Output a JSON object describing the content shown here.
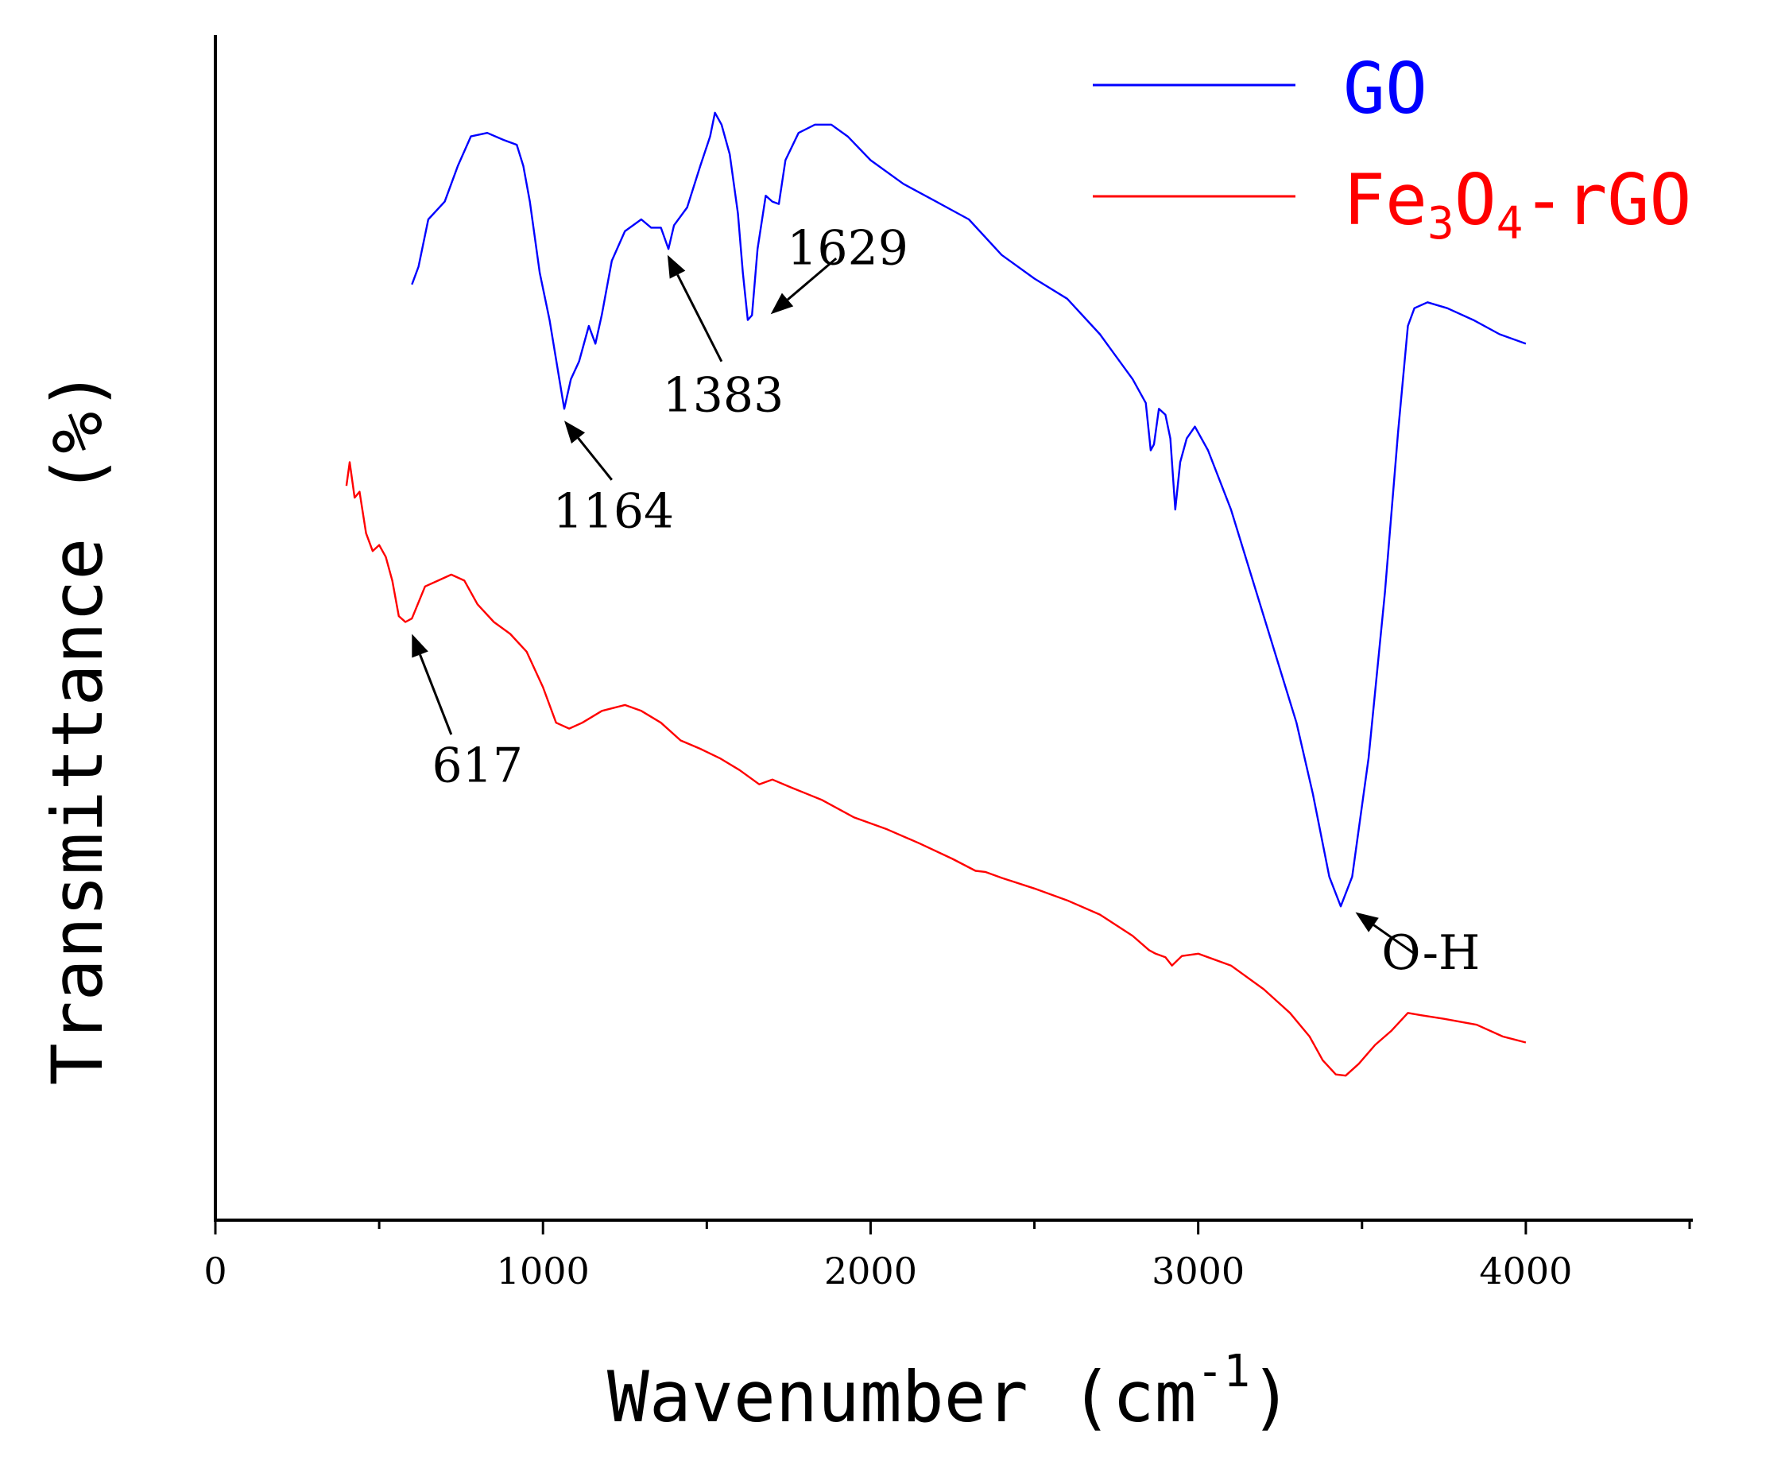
{
  "chart_data": {
    "type": "line",
    "title": "",
    "xlabel": "Wavenumber",
    "xlabel_unit": "(cm",
    "xlabel_unit_sup": "-1",
    "xlabel_unit_close": ")",
    "ylabel": "Transmittance (%)",
    "xlim": [
      0,
      4500
    ],
    "ylim": [
      0,
      100
    ],
    "x_ticks": [
      "0",
      "1000",
      "2000",
      "3000",
      "4000"
    ],
    "x_tick_values": [
      0,
      1000,
      2000,
      3000,
      4000
    ],
    "x_minor_ticks": [
      500,
      1500,
      2500,
      3500,
      4500
    ],
    "grid": false,
    "legend_position": "top-right",
    "series": [
      {
        "name": "GO",
        "color": "#0000ff",
        "points": [
          [
            600,
            79
          ],
          [
            620,
            80.5
          ],
          [
            650,
            84.5
          ],
          [
            700,
            86
          ],
          [
            740,
            89
          ],
          [
            780,
            91.5
          ],
          [
            830,
            91.8
          ],
          [
            880,
            91.2
          ],
          [
            920,
            90.8
          ],
          [
            940,
            89
          ],
          [
            960,
            86
          ],
          [
            990,
            80
          ],
          [
            1020,
            76
          ],
          [
            1050,
            71
          ],
          [
            1065,
            68.5
          ],
          [
            1085,
            71
          ],
          [
            1110,
            72.5
          ],
          [
            1140,
            75.5
          ],
          [
            1160,
            74
          ],
          [
            1180,
            76.5
          ],
          [
            1210,
            81
          ],
          [
            1250,
            83.5
          ],
          [
            1300,
            84.5
          ],
          [
            1330,
            83.8
          ],
          [
            1360,
            83.8
          ],
          [
            1383,
            82
          ],
          [
            1400,
            84
          ],
          [
            1440,
            85.5
          ],
          [
            1480,
            89
          ],
          [
            1510,
            91.5
          ],
          [
            1525,
            93.5
          ],
          [
            1545,
            92.5
          ],
          [
            1570,
            90
          ],
          [
            1595,
            85
          ],
          [
            1610,
            80
          ],
          [
            1625,
            76
          ],
          [
            1638,
            76.4
          ],
          [
            1655,
            82
          ],
          [
            1680,
            86.5
          ],
          [
            1700,
            86
          ],
          [
            1720,
            85.8
          ],
          [
            1740,
            89.5
          ],
          [
            1780,
            91.8
          ],
          [
            1830,
            92.5
          ],
          [
            1880,
            92.5
          ],
          [
            1930,
            91.5
          ],
          [
            2000,
            89.5
          ],
          [
            2100,
            87.5
          ],
          [
            2200,
            86
          ],
          [
            2300,
            84.5
          ],
          [
            2400,
            81.5
          ],
          [
            2500,
            79.5
          ],
          [
            2600,
            77.8
          ],
          [
            2700,
            74.8
          ],
          [
            2800,
            71
          ],
          [
            2840,
            69
          ],
          [
            2855,
            65
          ],
          [
            2865,
            65.5
          ],
          [
            2880,
            68.5
          ],
          [
            2900,
            68
          ],
          [
            2915,
            66
          ],
          [
            2930,
            60
          ],
          [
            2945,
            64
          ],
          [
            2965,
            66
          ],
          [
            2990,
            67
          ],
          [
            3030,
            65
          ],
          [
            3100,
            60
          ],
          [
            3200,
            51
          ],
          [
            3300,
            42
          ],
          [
            3350,
            36
          ],
          [
            3400,
            29
          ],
          [
            3435,
            26.5
          ],
          [
            3470,
            29
          ],
          [
            3520,
            39
          ],
          [
            3570,
            53
          ],
          [
            3610,
            66.5
          ],
          [
            3640,
            75.5
          ],
          [
            3660,
            77
          ],
          [
            3700,
            77.5
          ],
          [
            3760,
            77
          ],
          [
            3840,
            76
          ],
          [
            3920,
            74.8
          ],
          [
            4000,
            74
          ]
        ]
      },
      {
        "name": "Fe3O4-rGO",
        "legend_label_parts": [
          "Fe",
          "3",
          "O",
          "4",
          "-rGO"
        ],
        "color": "#ff0000",
        "points": [
          [
            400,
            62
          ],
          [
            410,
            64
          ],
          [
            425,
            61
          ],
          [
            440,
            61.5
          ],
          [
            460,
            58
          ],
          [
            480,
            56.5
          ],
          [
            500,
            57
          ],
          [
            520,
            56
          ],
          [
            540,
            54
          ],
          [
            560,
            51
          ],
          [
            580,
            50.5
          ],
          [
            600,
            50.8
          ],
          [
            640,
            53.5
          ],
          [
            680,
            54
          ],
          [
            720,
            54.5
          ],
          [
            760,
            54
          ],
          [
            800,
            52
          ],
          [
            850,
            50.5
          ],
          [
            900,
            49.5
          ],
          [
            950,
            48
          ],
          [
            1000,
            45
          ],
          [
            1040,
            42
          ],
          [
            1080,
            41.5
          ],
          [
            1120,
            42
          ],
          [
            1180,
            43
          ],
          [
            1250,
            43.5
          ],
          [
            1300,
            43
          ],
          [
            1360,
            42
          ],
          [
            1420,
            40.5
          ],
          [
            1480,
            39.8
          ],
          [
            1540,
            39
          ],
          [
            1600,
            38
          ],
          [
            1660,
            36.8
          ],
          [
            1700,
            37.2
          ],
          [
            1760,
            36.5
          ],
          [
            1850,
            35.5
          ],
          [
            1950,
            34
          ],
          [
            2050,
            33
          ],
          [
            2150,
            31.8
          ],
          [
            2250,
            30.5
          ],
          [
            2320,
            29.5
          ],
          [
            2350,
            29.4
          ],
          [
            2400,
            28.9
          ],
          [
            2500,
            28
          ],
          [
            2600,
            27
          ],
          [
            2700,
            25.8
          ],
          [
            2800,
            24
          ],
          [
            2850,
            22.8
          ],
          [
            2870,
            22.5
          ],
          [
            2900,
            22.2
          ],
          [
            2920,
            21.5
          ],
          [
            2950,
            22.3
          ],
          [
            3000,
            22.5
          ],
          [
            3100,
            21.5
          ],
          [
            3200,
            19.5
          ],
          [
            3280,
            17.5
          ],
          [
            3340,
            15.5
          ],
          [
            3380,
            13.5
          ],
          [
            3420,
            12.3
          ],
          [
            3450,
            12.2
          ],
          [
            3490,
            13.2
          ],
          [
            3540,
            14.8
          ],
          [
            3590,
            16
          ],
          [
            3640,
            17.5
          ],
          [
            3680,
            17.3
          ],
          [
            3750,
            17
          ],
          [
            3850,
            16.5
          ],
          [
            3930,
            15.5
          ],
          [
            4000,
            15
          ]
        ]
      }
    ],
    "annotations": [
      {
        "label": "1164",
        "target": [
          1065,
          67.5
        ],
        "tail": [
          1210,
          62.5
        ],
        "text_pos": [
          1215,
          58.5
        ]
      },
      {
        "label": "1383",
        "target": [
          1380,
          81.5
        ],
        "tail": [
          1545,
          72.5
        ],
        "text_pos": [
          1550,
          68.3
        ]
      },
      {
        "label": "1629",
        "target": [
          1695,
          76.5
        ],
        "tail": [
          1895,
          81.2
        ],
        "text_pos": [
          1930,
          80.7
        ]
      },
      {
        "label": "617",
        "target": [
          600,
          49.5
        ],
        "tail": [
          720,
          41
        ],
        "text_pos": [
          800,
          37
        ]
      },
      {
        "label": "O-H",
        "target": [
          3480,
          26
        ],
        "tail": [
          3660,
          22.5
        ],
        "text_pos": [
          3710,
          21.2
        ]
      }
    ]
  }
}
